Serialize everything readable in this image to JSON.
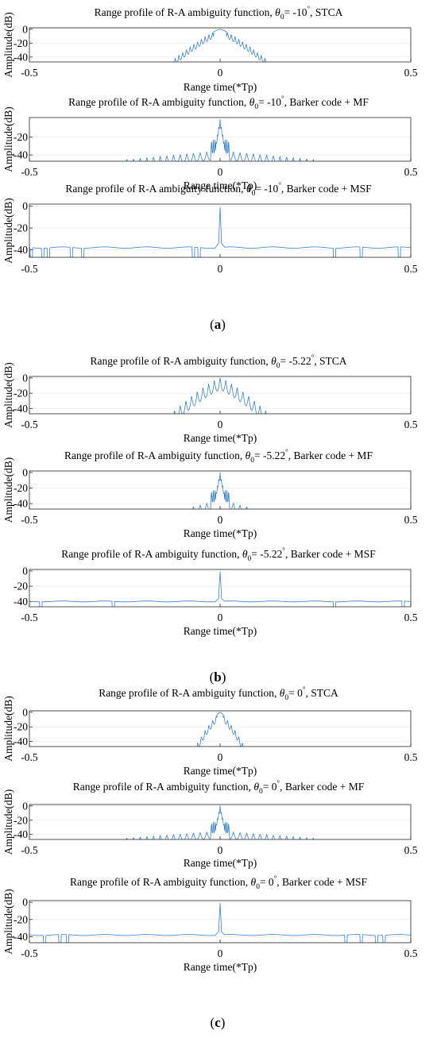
{
  "chart_data": [
    {
      "panel": "a",
      "type": "line",
      "profile": "stca",
      "title": {
        "pre": "Range profile of R-A ambiguity function, ",
        "theta": "θ",
        "sub": "0",
        "mid": "= -10",
        "deg": "°",
        "post": ", STCA"
      },
      "xlabel": "Range time(*Tp)",
      "ylabel": "Amplitude(dB)",
      "xlim": [
        -0.5,
        0.5
      ],
      "ylim": [
        -47,
        2
      ],
      "xticks": [
        "-0.5",
        "0",
        "0.5"
      ],
      "yticks": [
        "0",
        "-20",
        "-40"
      ],
      "ytick_values": [
        0,
        -20,
        -40
      ],
      "width": 0.11,
      "floor": -47,
      "sidelobe": false,
      "series": [
        {
          "peak_db": 0
        }
      ]
    },
    {
      "panel": "a",
      "type": "line",
      "profile": "mf",
      "title": {
        "pre": "Range profile of R-A ambiguity function, ",
        "theta": "θ",
        "sub": "0",
        "mid": "= -10",
        "deg": "°",
        "post": ", Barker code + MF"
      },
      "xlabel": "Range time(*Tp)",
      "ylabel": "Amplitude(dB)",
      "xlim": [
        -0.5,
        0.5
      ],
      "ylim": [
        -47,
        2
      ],
      "xticks": [
        "-0.5",
        "0",
        "0.5"
      ],
      "yticks": [
        "-20",
        "-40"
      ],
      "ytick_values": [
        -20,
        -40
      ],
      "width": 0.25,
      "floor": -47,
      "series": [
        {
          "peak_db": 0
        }
      ]
    },
    {
      "panel": "a",
      "type": "line",
      "profile": "msf",
      "title": {
        "pre": "Range profile of R-A ambiguity function, ",
        "theta": "θ",
        "sub": "0",
        "mid": "= -10",
        "deg": "°",
        "post": ", Barker code + MSF"
      },
      "xlabel": "",
      "ylabel": "Amplitude(dB)",
      "xlim": [
        -0.5,
        0.5
      ],
      "ylim": [
        -47,
        2
      ],
      "xticks": [
        "-0.5",
        "0",
        "0.5"
      ],
      "yticks": [
        "0",
        "-20",
        "-40"
      ],
      "ytick_values": [
        0,
        -20,
        -40
      ],
      "floor": -38,
      "dips": [
        -0.495,
        -0.465,
        -0.45,
        -0.39,
        -0.36,
        -0.07,
        -0.055,
        0.3,
        0.37,
        0.47
      ],
      "series": [
        {
          "peak_db": 0
        }
      ]
    },
    {
      "panel": "b",
      "type": "line",
      "profile": "stca",
      "title": {
        "pre": "Range profile of R-A ambiguity function, ",
        "theta": "θ",
        "sub": "0",
        "mid": "= -5.22",
        "deg": "°",
        "post": ", STCA"
      },
      "xlabel": "Range time(*Tp)",
      "ylabel": "Amplitude(dB)",
      "xlim": [
        -0.5,
        0.5
      ],
      "ylim": [
        -47,
        2
      ],
      "xticks": [
        "-0.5",
        "0",
        "0.5"
      ],
      "yticks": [
        "0",
        "-20",
        "-40"
      ],
      "ytick_values": [
        0,
        -20,
        -40
      ],
      "width": 0.11,
      "floor": -47,
      "sidelobe": true,
      "series": [
        {
          "peak_db": 0
        }
      ]
    },
    {
      "panel": "b",
      "type": "line",
      "profile": "mf",
      "title": {
        "pre": "Range profile of R-A ambiguity function, ",
        "theta": "θ",
        "sub": "0",
        "mid": "= -5.22",
        "deg": "°",
        "post": ", Barker code + MF"
      },
      "xlabel": "Range time(*Tp)",
      "ylabel": "Amplitude(dB)",
      "xlim": [
        -0.5,
        0.5
      ],
      "ylim": [
        -47,
        2
      ],
      "xticks": [
        "-0.5",
        "0",
        "0.5"
      ],
      "yticks": [
        "0",
        "-20",
        "-40"
      ],
      "ytick_values": [
        0,
        -20,
        -40
      ],
      "width": 0.08,
      "floor": -47,
      "series": [
        {
          "peak_db": 0
        }
      ]
    },
    {
      "panel": "b",
      "type": "line",
      "profile": "msf",
      "title": {
        "pre": "Range profile of R-A ambiguity function, ",
        "theta": "θ",
        "sub": "0",
        "mid": "= -5.22",
        "deg": "°",
        "post": ", Barker code + MSF"
      },
      "xlabel": "Range time(*Tp)",
      "ylabel": "",
      "xlim": [
        -0.5,
        0.5
      ],
      "ylim": [
        -47,
        2
      ],
      "xticks": [
        "-0.5",
        "0",
        "0.5"
      ],
      "yticks": [
        "0",
        "-20",
        "-40"
      ],
      "ytick_values": [
        0,
        -20,
        -40
      ],
      "floor": -40,
      "dips": [
        -0.47,
        -0.28,
        0.3,
        0.48
      ],
      "series": [
        {
          "peak_db": 0
        }
      ]
    },
    {
      "panel": "c",
      "type": "line",
      "profile": "stca",
      "title": {
        "pre": "Range profile of R-A ambiguity function, ",
        "theta": "θ",
        "sub": "0",
        "mid": "= 0",
        "deg": "°",
        "post": ", STCA"
      },
      "xlabel": "Range time(*Tp)",
      "ylabel": "Amplitude(dB)",
      "xlim": [
        -0.5,
        0.5
      ],
      "ylim": [
        -47,
        2
      ],
      "xticks": [
        "-0.5",
        "0",
        "0.5"
      ],
      "yticks": [
        "0",
        "-20",
        "-40"
      ],
      "ytick_values": [
        0,
        -20,
        -40
      ],
      "width": 0.055,
      "floor": -47,
      "series": [
        {
          "peak_db": 0
        }
      ]
    },
    {
      "panel": "c",
      "type": "line",
      "profile": "mf",
      "title": {
        "pre": "Range profile of R-A ambiguity function, ",
        "theta": "θ",
        "sub": "0",
        "mid": "= 0",
        "deg": "°",
        "post": ", Barker code + MF"
      },
      "xlabel": "Range time(*Tp)",
      "ylabel": "Amplitude(dB)",
      "xlim": [
        -0.5,
        0.5
      ],
      "ylim": [
        -47,
        2
      ],
      "xticks": [
        "-0.5",
        "0",
        "0.5"
      ],
      "yticks": [
        "0",
        "-20",
        "-40"
      ],
      "ytick_values": [
        0,
        -20,
        -40
      ],
      "width": 0.25,
      "floor": -47,
      "series": [
        {
          "peak_db": 0
        }
      ]
    },
    {
      "panel": "c",
      "type": "line",
      "profile": "msf",
      "title": {
        "pre": "Range profile of R-A ambiguity function, ",
        "theta": "θ",
        "sub": "0",
        "mid": "= 0",
        "deg": "°",
        "post": ", Barker code + MSF"
      },
      "xlabel": "Range time(*Tp)",
      "ylabel": "Amplitude(dB)",
      "xlim": [
        -0.5,
        0.5
      ],
      "ylim": [
        -47,
        2
      ],
      "xticks": [
        "-0.5",
        "0",
        "0.5"
      ],
      "yticks": [
        "0",
        "-20",
        "-40"
      ],
      "ytick_values": [
        0,
        -20,
        -40
      ],
      "floor": -38,
      "dips": [
        -0.46,
        -0.42,
        -0.4,
        0.33,
        0.37,
        0.41,
        0.43
      ],
      "series": [
        {
          "peak_db": 0
        }
      ]
    }
  ],
  "captions": [
    "(a)",
    "(b)",
    "(c)"
  ],
  "colors": {
    "line": "#2b7bd3",
    "grid": "#e6e6e6",
    "frame": "#262626"
  }
}
